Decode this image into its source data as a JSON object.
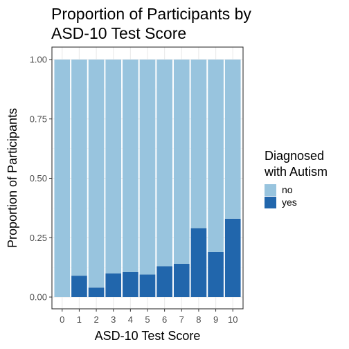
{
  "chart_data": {
    "type": "bar",
    "stacked": "proportion",
    "title": "Proportion of Participants by ASD-10 Test Score",
    "title_lines": [
      "Proportion of Participants by",
      "ASD-10 Test Score"
    ],
    "xlabel": "ASD-10 Test Score",
    "ylabel": "Proportion of Participants",
    "categories": [
      "0",
      "1",
      "2",
      "3",
      "4",
      "5",
      "6",
      "7",
      "8",
      "9",
      "10"
    ],
    "yticks": [
      "0.00",
      "0.25",
      "0.50",
      "0.75",
      "1.00"
    ],
    "ytick_values": [
      0,
      0.25,
      0.5,
      0.75,
      1.0
    ],
    "ylim": [
      0,
      1
    ],
    "grid": true,
    "legend_title": "Diagnosed with Autism",
    "legend_title_lines": [
      "Diagnosed",
      "with Autism"
    ],
    "legend_position": "right",
    "series": [
      {
        "name": "no",
        "color": "#98C4DE",
        "values": [
          1.0,
          0.91,
          0.96,
          0.9,
          0.895,
          0.905,
          0.87,
          0.86,
          0.71,
          0.81,
          0.67
        ]
      },
      {
        "name": "yes",
        "color": "#2166AC",
        "values": [
          0.0,
          0.09,
          0.04,
          0.1,
          0.105,
          0.095,
          0.13,
          0.14,
          0.29,
          0.19,
          0.33
        ]
      }
    ]
  }
}
